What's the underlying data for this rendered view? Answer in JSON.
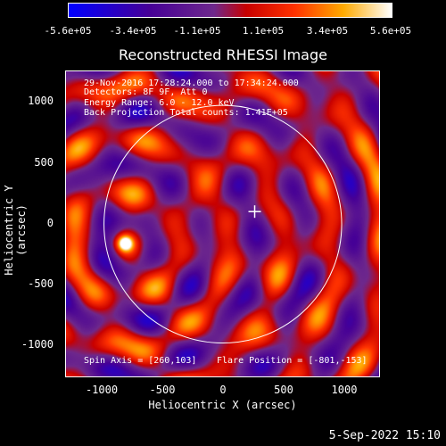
{
  "colorbar": {
    "ticks": [
      "-5.6e+05",
      "-3.4e+05",
      "-1.1e+05",
      "1.1e+05",
      "3.4e+05",
      "5.6e+05"
    ],
    "range": [
      -560000,
      560000
    ]
  },
  "title": "Reconstructed RHESSI Image",
  "info": {
    "line1": "29-Nov-2016 17:28:24.000 to 17:34:24.000",
    "line2": "Detectors: 8F 9F, Att 0",
    "line3": "Energy Range: 6.0 - 12.0 keV",
    "line4": "Back Projection    Total counts: 1.41E+05",
    "spin_axis": "Spin Axis = [260,103]",
    "flare_position": "Flare Position = [-801,-153]"
  },
  "axes": {
    "xlabel": "Heliocentric X (arcsec)",
    "ylabel": "Heliocentric Y (arcsec)",
    "xticks": [
      "-1000",
      "-500",
      "0",
      "500",
      "1000"
    ],
    "yticks": [
      "1000",
      "500",
      "0",
      "-500",
      "-1000"
    ],
    "xlim": [
      -1280,
      1290
    ],
    "ylim": [
      -1260,
      1250
    ]
  },
  "chart_data": {
    "type": "heatmap",
    "title": "Reconstructed RHESSI Image",
    "xlabel": "Heliocentric X (arcsec)",
    "ylabel": "Heliocentric Y (arcsec)",
    "xlim": [
      -1280,
      1290
    ],
    "ylim": [
      -1260,
      1250
    ],
    "color_range": [
      -560000,
      560000
    ],
    "peak_source": [
      -801,
      -153
    ],
    "spin_axis": [
      260,
      103
    ],
    "solar_disk_radius_arcsec": 970
  },
  "footer": {
    "date": "5-Sep-2022 15:10"
  }
}
